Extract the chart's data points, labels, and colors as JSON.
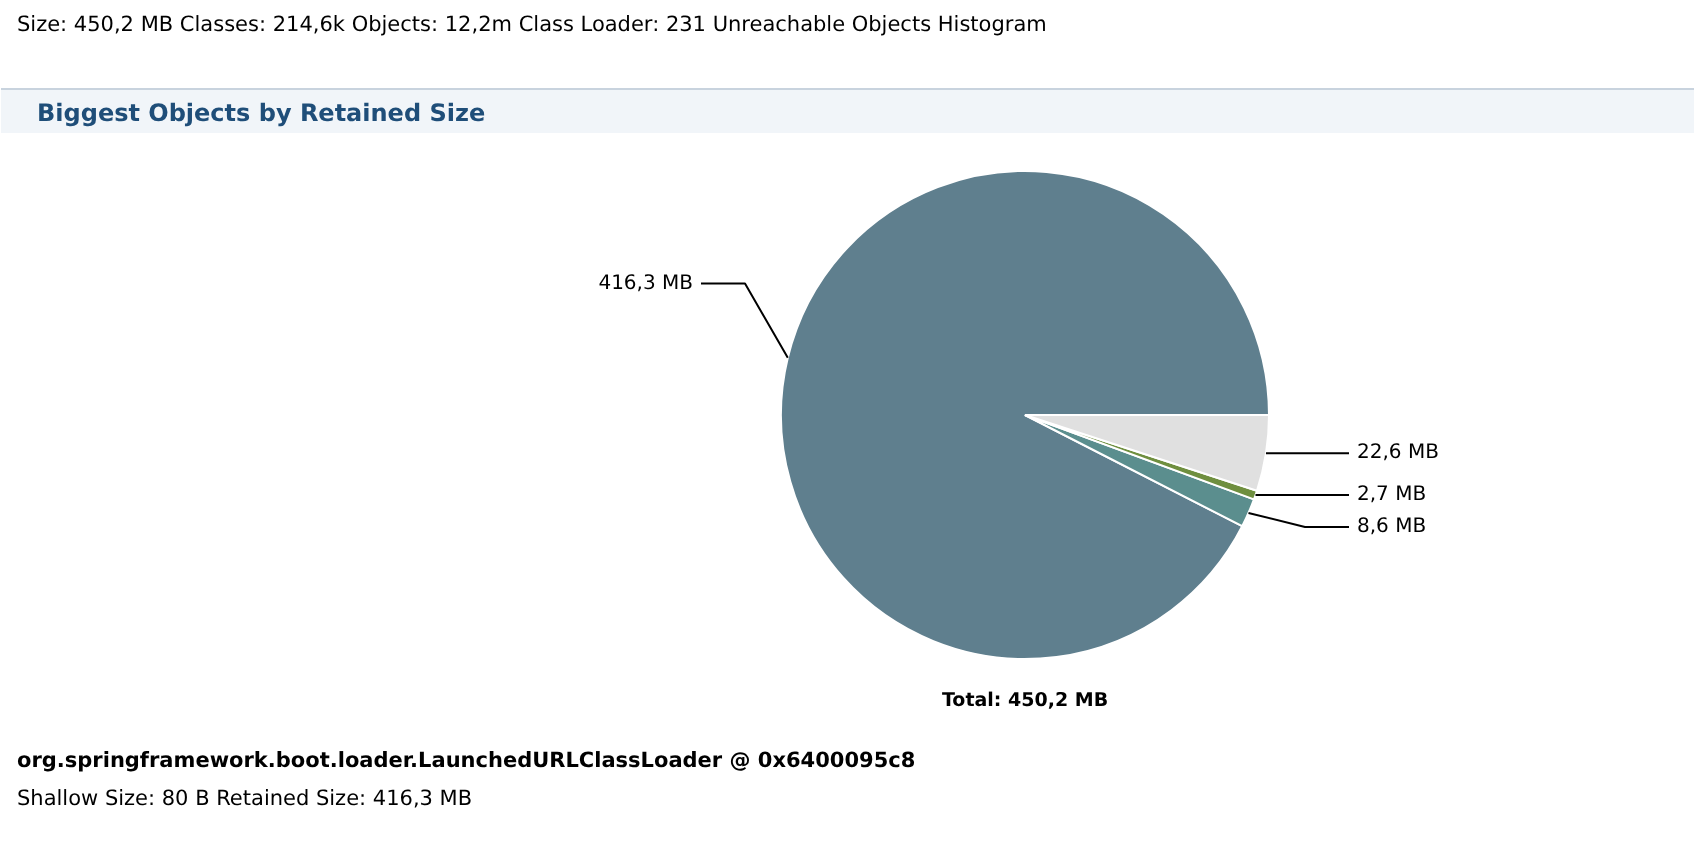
{
  "chart_data": {
    "type": "pie",
    "title": "Biggest Objects by Retained Size",
    "categories": [
      null,
      null,
      null,
      null
    ],
    "values": [
      416.3,
      8.6,
      2.7,
      22.6
    ],
    "value_labels": [
      "416,3 MB",
      "8,6 MB",
      "2,7 MB",
      "22,6 MB"
    ],
    "colors": [
      "#5f7f8e",
      "#5b8e8e",
      "#6f8f3f",
      "#e0e0e0"
    ],
    "annotations": [
      "Size: 450,2 MB Classes: 214,6k Objects: 12,2m Class Loader: 231 Unreachable Objects Histogram",
      "Total: 450,2 MB",
      "org.springframework.boot.loader.LaunchedURLClassLoader @ 0x6400095c8",
      "Shallow Size: 80 B Retained Size: 416,3 MB"
    ]
  }
}
